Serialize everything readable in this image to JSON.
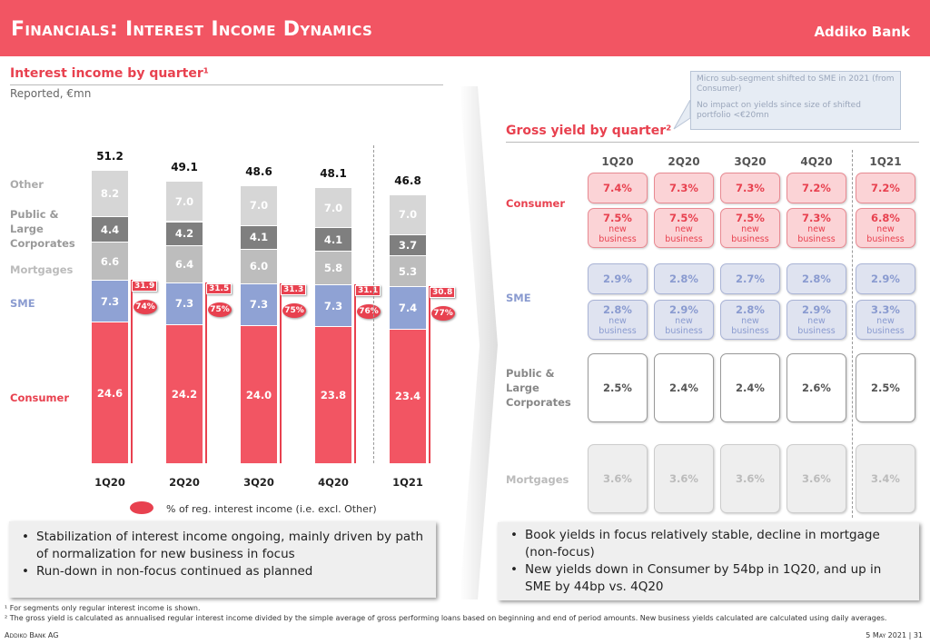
{
  "header": {
    "title": "Financials: Interest Income Dynamics",
    "logo": "Addiko Bank"
  },
  "left": {
    "title": "Interest income by quarter¹",
    "subtitle": "Reported, €mn",
    "legend": "% of reg. interest income (i.e. excl. Other)",
    "bullets": [
      "Stabilization of interest income ongoing, mainly driven by path of normalization for new business in focus",
      "Run-down in non-focus continued as planned"
    ]
  },
  "chart_data": {
    "type": "bar",
    "stacked": true,
    "title": "Interest income by quarter¹",
    "ylabel": "Reported, €mn",
    "categories": [
      "1Q20",
      "2Q20",
      "3Q20",
      "4Q20",
      "1Q21"
    ],
    "series": [
      {
        "name": "Consumer",
        "values": [
          24.6,
          24.2,
          24.0,
          23.8,
          23.4
        ],
        "color": "#f25563",
        "label_color": "#e8414f"
      },
      {
        "name": "SME",
        "values": [
          7.3,
          7.3,
          7.3,
          7.3,
          7.4
        ],
        "color": "#8fa2d4",
        "label_color": "#8a9bd0"
      },
      {
        "name": "Mortgages",
        "values": [
          6.6,
          6.4,
          6.0,
          5.8,
          5.3
        ],
        "color": "#bdbdbd",
        "label_color": "#bbbbbb"
      },
      {
        "name": "Public & Large Corporates",
        "values": [
          4.4,
          4.2,
          4.1,
          4.1,
          3.7
        ],
        "color": "#7f7f7f",
        "label_color": "#999999"
      },
      {
        "name": "Other",
        "values": [
          8.2,
          7.0,
          7.0,
          7.0,
          7.0
        ],
        "color": "#d6d6d6",
        "label_color": "#aaaaaa"
      }
    ],
    "totals": [
      "51.2",
      "49.1",
      "48.6",
      "48.1",
      "46.8"
    ],
    "regular_totals": [
      "31.9",
      "31.5",
      "31.3",
      "31.1",
      "30.8"
    ],
    "regular_share": [
      "74%",
      "75%",
      "75%",
      "76%",
      "77%"
    ]
  },
  "right": {
    "title": "Gross yield by quarter²",
    "callout": [
      "Micro sub-segment shifted to SME in 2021 (from Consumer)",
      "No impact on yields since size of shifted portfolio <€20mn"
    ],
    "columns": [
      "1Q20",
      "2Q20",
      "3Q20",
      "4Q20",
      "1Q21"
    ],
    "nb_label1": "new",
    "nb_label2": "business",
    "rows": [
      {
        "label": "Consumer",
        "book": [
          "7.4%",
          "7.3%",
          "7.3%",
          "7.2%",
          "7.2%"
        ],
        "new": [
          "7.5%",
          "7.5%",
          "7.5%",
          "7.3%",
          "6.8%"
        ]
      },
      {
        "label": "SME",
        "book": [
          "2.9%",
          "2.8%",
          "2.7%",
          "2.8%",
          "2.9%"
        ],
        "new": [
          "2.8%",
          "2.9%",
          "2.8%",
          "2.9%",
          "3.3%"
        ]
      },
      {
        "label": "Public & Large Corporates",
        "book": [
          "2.5%",
          "2.4%",
          "2.4%",
          "2.6%",
          "2.5%"
        ]
      },
      {
        "label": "Mortgages",
        "book": [
          "3.6%",
          "3.6%",
          "3.6%",
          "3.6%",
          "3.4%"
        ]
      }
    ],
    "bullets": [
      "Book yields in focus relatively stable, decline in mortgage (non-focus)",
      "New yields down in Consumer by 54bp in 1Q20, and up in SME by 44bp vs. 4Q20"
    ]
  },
  "footer": {
    "note1": "¹ For segments only regular interest income is shown.",
    "note2": "² The gross yield is calculated as annualised regular interest income divided by the simple average of gross performing loans based on beginning and end of period amounts. New business yields calculated are calculated using daily averages.",
    "company": "Addiko Bank AG",
    "date_page": "5 May 2021 | 31"
  }
}
